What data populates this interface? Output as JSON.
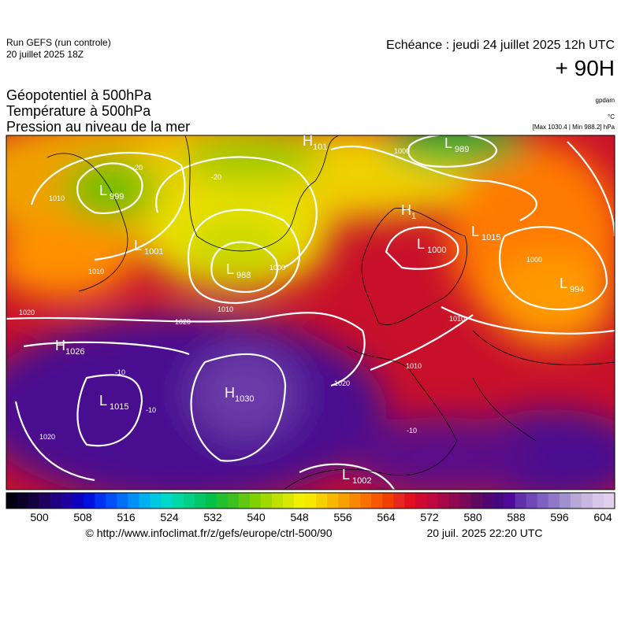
{
  "header": {
    "run": "Run GEFS (run controle)",
    "date": "20 juillet 2025 18Z",
    "echeance": "Echéance : jeudi 24 juillet 2025 12h UTC",
    "lead": "+ 90H"
  },
  "legend": {
    "titles": [
      "Géopotentiel à 500hPa",
      "Température à 500hPa",
      "Pression au niveau de la mer"
    ],
    "units": [
      "gpdam",
      "°C",
      "[Max 1030.4 | Min 988.2] hPa"
    ]
  },
  "map": {
    "centers": [
      {
        "letter": "H",
        "value": "101"
      },
      {
        "letter": "L",
        "value": "989"
      },
      {
        "letter": "L",
        "value": "999"
      },
      {
        "letter": "L",
        "value": "1001"
      },
      {
        "letter": "L",
        "value": "988"
      },
      {
        "letter": "H",
        "value": "1"
      },
      {
        "letter": "L",
        "value": "1000"
      },
      {
        "letter": "L",
        "value": "1015"
      },
      {
        "letter": "L",
        "value": "994"
      },
      {
        "letter": "H",
        "value": "1026"
      },
      {
        "letter": "L",
        "value": "1015"
      },
      {
        "letter": "H",
        "value": "1030"
      },
      {
        "letter": "L",
        "value": "1002"
      }
    ],
    "contour_labels": [
      "1000",
      "1010",
      "1010",
      "1020",
      "1020",
      "1010",
      "1000",
      "1020",
      "1010",
      "1010",
      "1000",
      "1020",
      "-20",
      "-20",
      "-10",
      "-10",
      "-10"
    ]
  },
  "colorbar": {
    "ticks": [
      500,
      508,
      516,
      524,
      532,
      540,
      548,
      556,
      564,
      572,
      580,
      588,
      596,
      604
    ]
  },
  "footer": {
    "credit": "© http://www.infoclimat.fr/z/gefs/europe/ctrl-500/90",
    "time": "20 juil. 2025 22:20 UTC"
  }
}
